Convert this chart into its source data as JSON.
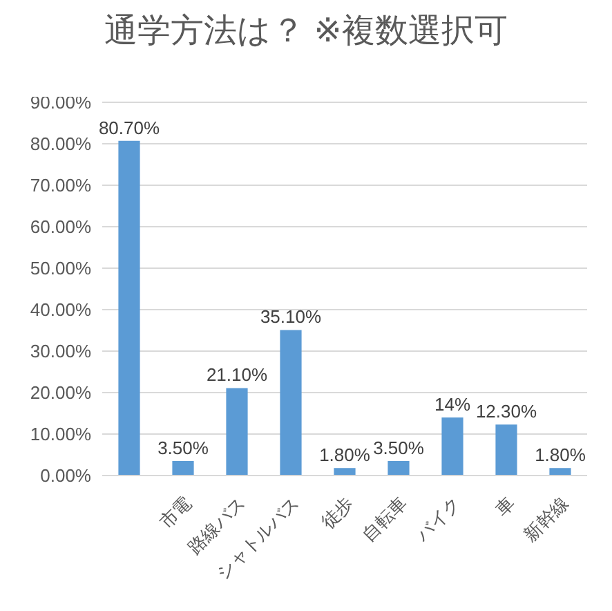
{
  "chart_data": {
    "type": "bar",
    "title": "通学方法は？ ※複数選択可",
    "categories": [
      null,
      "市電",
      "路線バス",
      "シャトルバス",
      "徒歩",
      "自転車",
      "バイク",
      "車",
      "新幹線"
    ],
    "values": [
      80.7,
      3.5,
      21.1,
      35.1,
      1.8,
      3.5,
      14,
      12.3,
      1.8
    ],
    "value_labels": [
      "80.70%",
      "3.50%",
      "21.10%",
      "35.10%",
      "1.80%",
      "3.50%",
      "14%",
      "12.30%",
      "1.80%"
    ],
    "color": "#5b9bd5",
    "ylim": [
      0,
      90
    ],
    "yticks": [
      {
        "value": 0,
        "label": "0.00%"
      },
      {
        "value": 10,
        "label": "10.00%"
      },
      {
        "value": 20,
        "label": "20.00%"
      },
      {
        "value": 30,
        "label": "30.00%"
      },
      {
        "value": 40,
        "label": "40.00%"
      },
      {
        "value": 50,
        "label": "50.00%"
      },
      {
        "value": 60,
        "label": "60.00%"
      },
      {
        "value": 70,
        "label": "70.00%"
      },
      {
        "value": 80,
        "label": "80.00%"
      },
      {
        "value": 90,
        "label": "90.00%"
      }
    ],
    "grid": "y",
    "legend": false
  }
}
